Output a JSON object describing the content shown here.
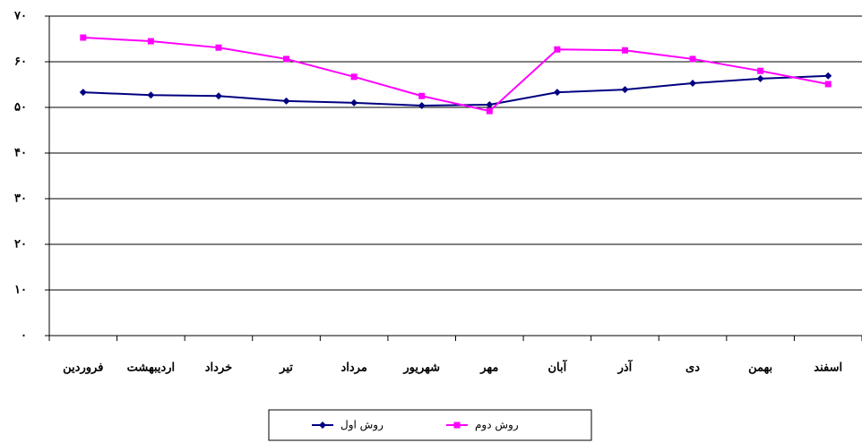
{
  "chart_data": {
    "type": "line",
    "categories": [
      "فروردین",
      "اردیبهشت",
      "خرداد",
      "تیر",
      "مرداد",
      "شهریور",
      "مهر",
      "آبان",
      "آذر",
      "دی",
      "بهمن",
      "اسفند"
    ],
    "series": [
      {
        "name": "روش اول",
        "color": "#000080",
        "marker": "diamond",
        "values": [
          53.3,
          52.7,
          52.5,
          51.4,
          51.0,
          50.4,
          50.6,
          53.3,
          53.9,
          55.3,
          56.3,
          56.9
        ]
      },
      {
        "name": "روش دوم",
        "color": "#ff00ff",
        "marker": "square",
        "values": [
          65.3,
          64.5,
          63.1,
          60.6,
          56.7,
          52.5,
          49.2,
          62.7,
          62.5,
          60.6,
          58.0,
          55.1
        ]
      }
    ],
    "ylim": [
      0,
      70
    ],
    "yticks": [
      {
        "value": 0,
        "label": "۰"
      },
      {
        "value": 10,
        "label": "۱۰"
      },
      {
        "value": 20,
        "label": "۲۰"
      },
      {
        "value": 30,
        "label": "۳۰"
      },
      {
        "value": 40,
        "label": "۴۰"
      },
      {
        "value": 50,
        "label": "۵۰"
      },
      {
        "value": 60,
        "label": "۶۰"
      },
      {
        "value": 70,
        "label": "۷۰"
      }
    ],
    "grid": true
  }
}
